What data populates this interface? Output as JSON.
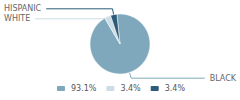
{
  "chart_data": {
    "type": "pie",
    "categories": [
      "BLACK",
      "WHITE",
      "HISPANIC"
    ],
    "values": [
      93.1,
      3.4,
      3.4
    ],
    "value_labels": [
      "93.1%",
      "3.4%",
      "3.4%"
    ],
    "colors": [
      "#7fa8bc",
      "#ccdde6",
      "#2d5c78"
    ],
    "legend": "bottom"
  }
}
